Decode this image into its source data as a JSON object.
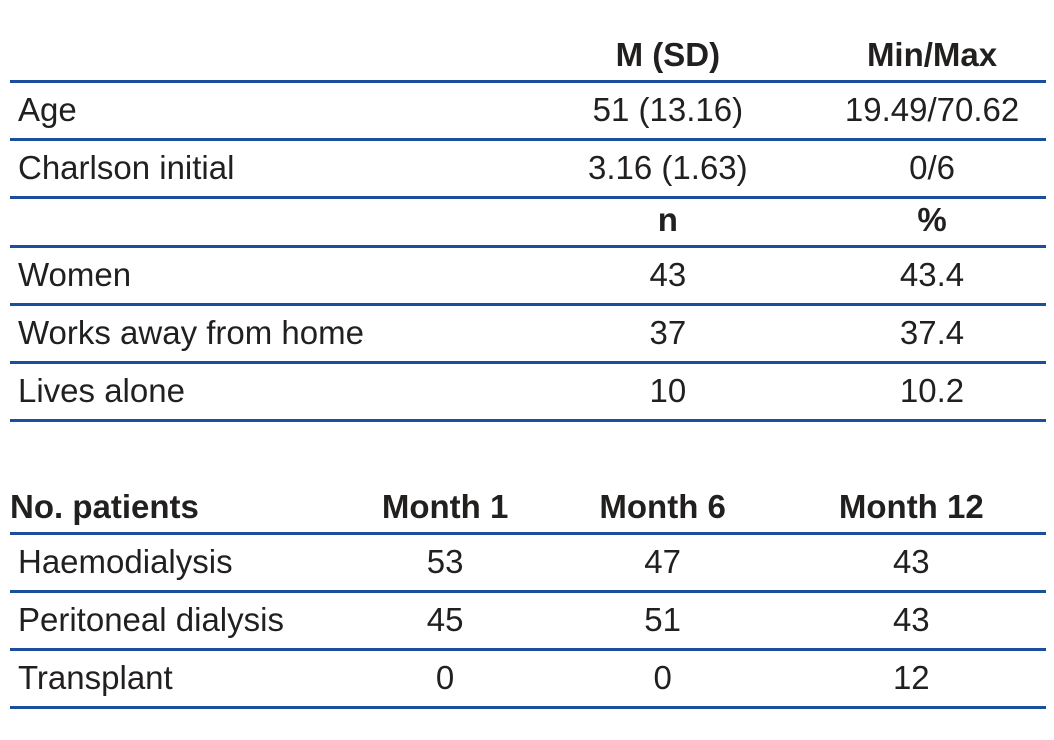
{
  "style": {
    "rule_color": "#1b4f9e",
    "text_color": "#221f1f",
    "background": "#ffffff"
  },
  "table1": {
    "section1": {
      "headers": {
        "col1": "",
        "col2": "M (SD)",
        "col3": "Min/Max"
      },
      "rows": [
        {
          "label": "Age",
          "m_sd": "51 (13.16)",
          "min_max": "19.49/70.62"
        },
        {
          "label": "Charlson initial",
          "m_sd": "3.16 (1.63)",
          "min_max": "0/6"
        }
      ]
    },
    "section2": {
      "headers": {
        "col1": "",
        "col2": "n",
        "col3": "%"
      },
      "rows": [
        {
          "label": "Women",
          "n": "43",
          "pct": "43.4"
        },
        {
          "label": "Works away from home",
          "n": "37",
          "pct": "37.4"
        },
        {
          "label": "Lives alone",
          "n": "10",
          "pct": "10.2"
        }
      ]
    }
  },
  "table2": {
    "headers": {
      "col1": "No. patients",
      "col2": "Month 1",
      "col3": "Month 6",
      "col4": "Month 12"
    },
    "rows": [
      {
        "label": "Haemodialysis",
        "month1": "53",
        "month6": "47",
        "month12": "43"
      },
      {
        "label": "Peritoneal dialysis",
        "month1": "45",
        "month6": "51",
        "month12": "43"
      },
      {
        "label": "Transplant",
        "month1": "0",
        "month6": "0",
        "month12": "12"
      }
    ]
  }
}
